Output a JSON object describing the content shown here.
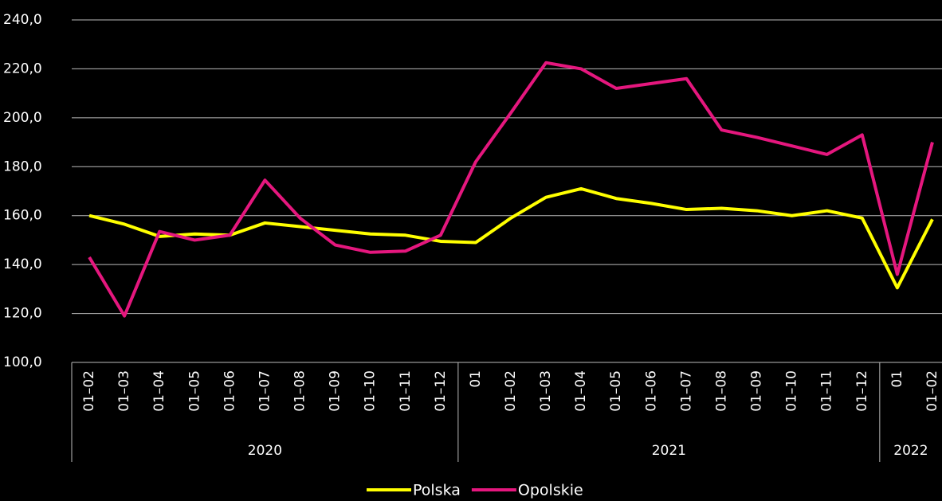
{
  "chart_data": {
    "type": "line",
    "groups": [
      {
        "label": "2020",
        "categories": [
          "01–02",
          "01–03",
          "01–04",
          "01–05",
          "01–06",
          "01–07",
          "01–08",
          "01–09",
          "01–10",
          "01–11",
          "01–12"
        ]
      },
      {
        "label": "2021",
        "categories": [
          "01",
          "01–02",
          "01–03",
          "01–04",
          "01–05",
          "01–06",
          "01–07",
          "01–08",
          "01–09",
          "01–10",
          "01–11",
          "01–12"
        ]
      },
      {
        "label": "2022",
        "categories": [
          "01",
          "01–02"
        ]
      }
    ],
    "series": [
      {
        "name": "Polska",
        "color": "#ffff00",
        "values": [
          160,
          156.5,
          151.5,
          152.5,
          152,
          157,
          155.5,
          154,
          152.5,
          152,
          149.5,
          149,
          159,
          167.5,
          171,
          167,
          165,
          162.5,
          163,
          162,
          160,
          162,
          159,
          130.5,
          158.5
        ]
      },
      {
        "name": "Opolskie",
        "color": "#e5177e",
        "values": [
          143,
          119,
          153.5,
          150,
          152,
          174.5,
          159,
          148,
          145,
          145.5,
          152,
          182,
          202,
          222.5,
          220,
          212,
          214,
          216,
          195,
          192,
          188.5,
          185,
          193,
          136,
          190
        ]
      }
    ],
    "ylim": [
      100,
      240
    ],
    "yticks": [
      {
        "value": 100,
        "label": "100,0"
      },
      {
        "value": 120,
        "label": "120,0"
      },
      {
        "value": 140,
        "label": "140,0"
      },
      {
        "value": 160,
        "label": "160,0"
      },
      {
        "value": 180,
        "label": "180,0"
      },
      {
        "value": 200,
        "label": "200,0"
      },
      {
        "value": 220,
        "label": "220,0"
      },
      {
        "value": 240,
        "label": "240,0"
      }
    ],
    "grid": true,
    "legend": "bottom"
  }
}
